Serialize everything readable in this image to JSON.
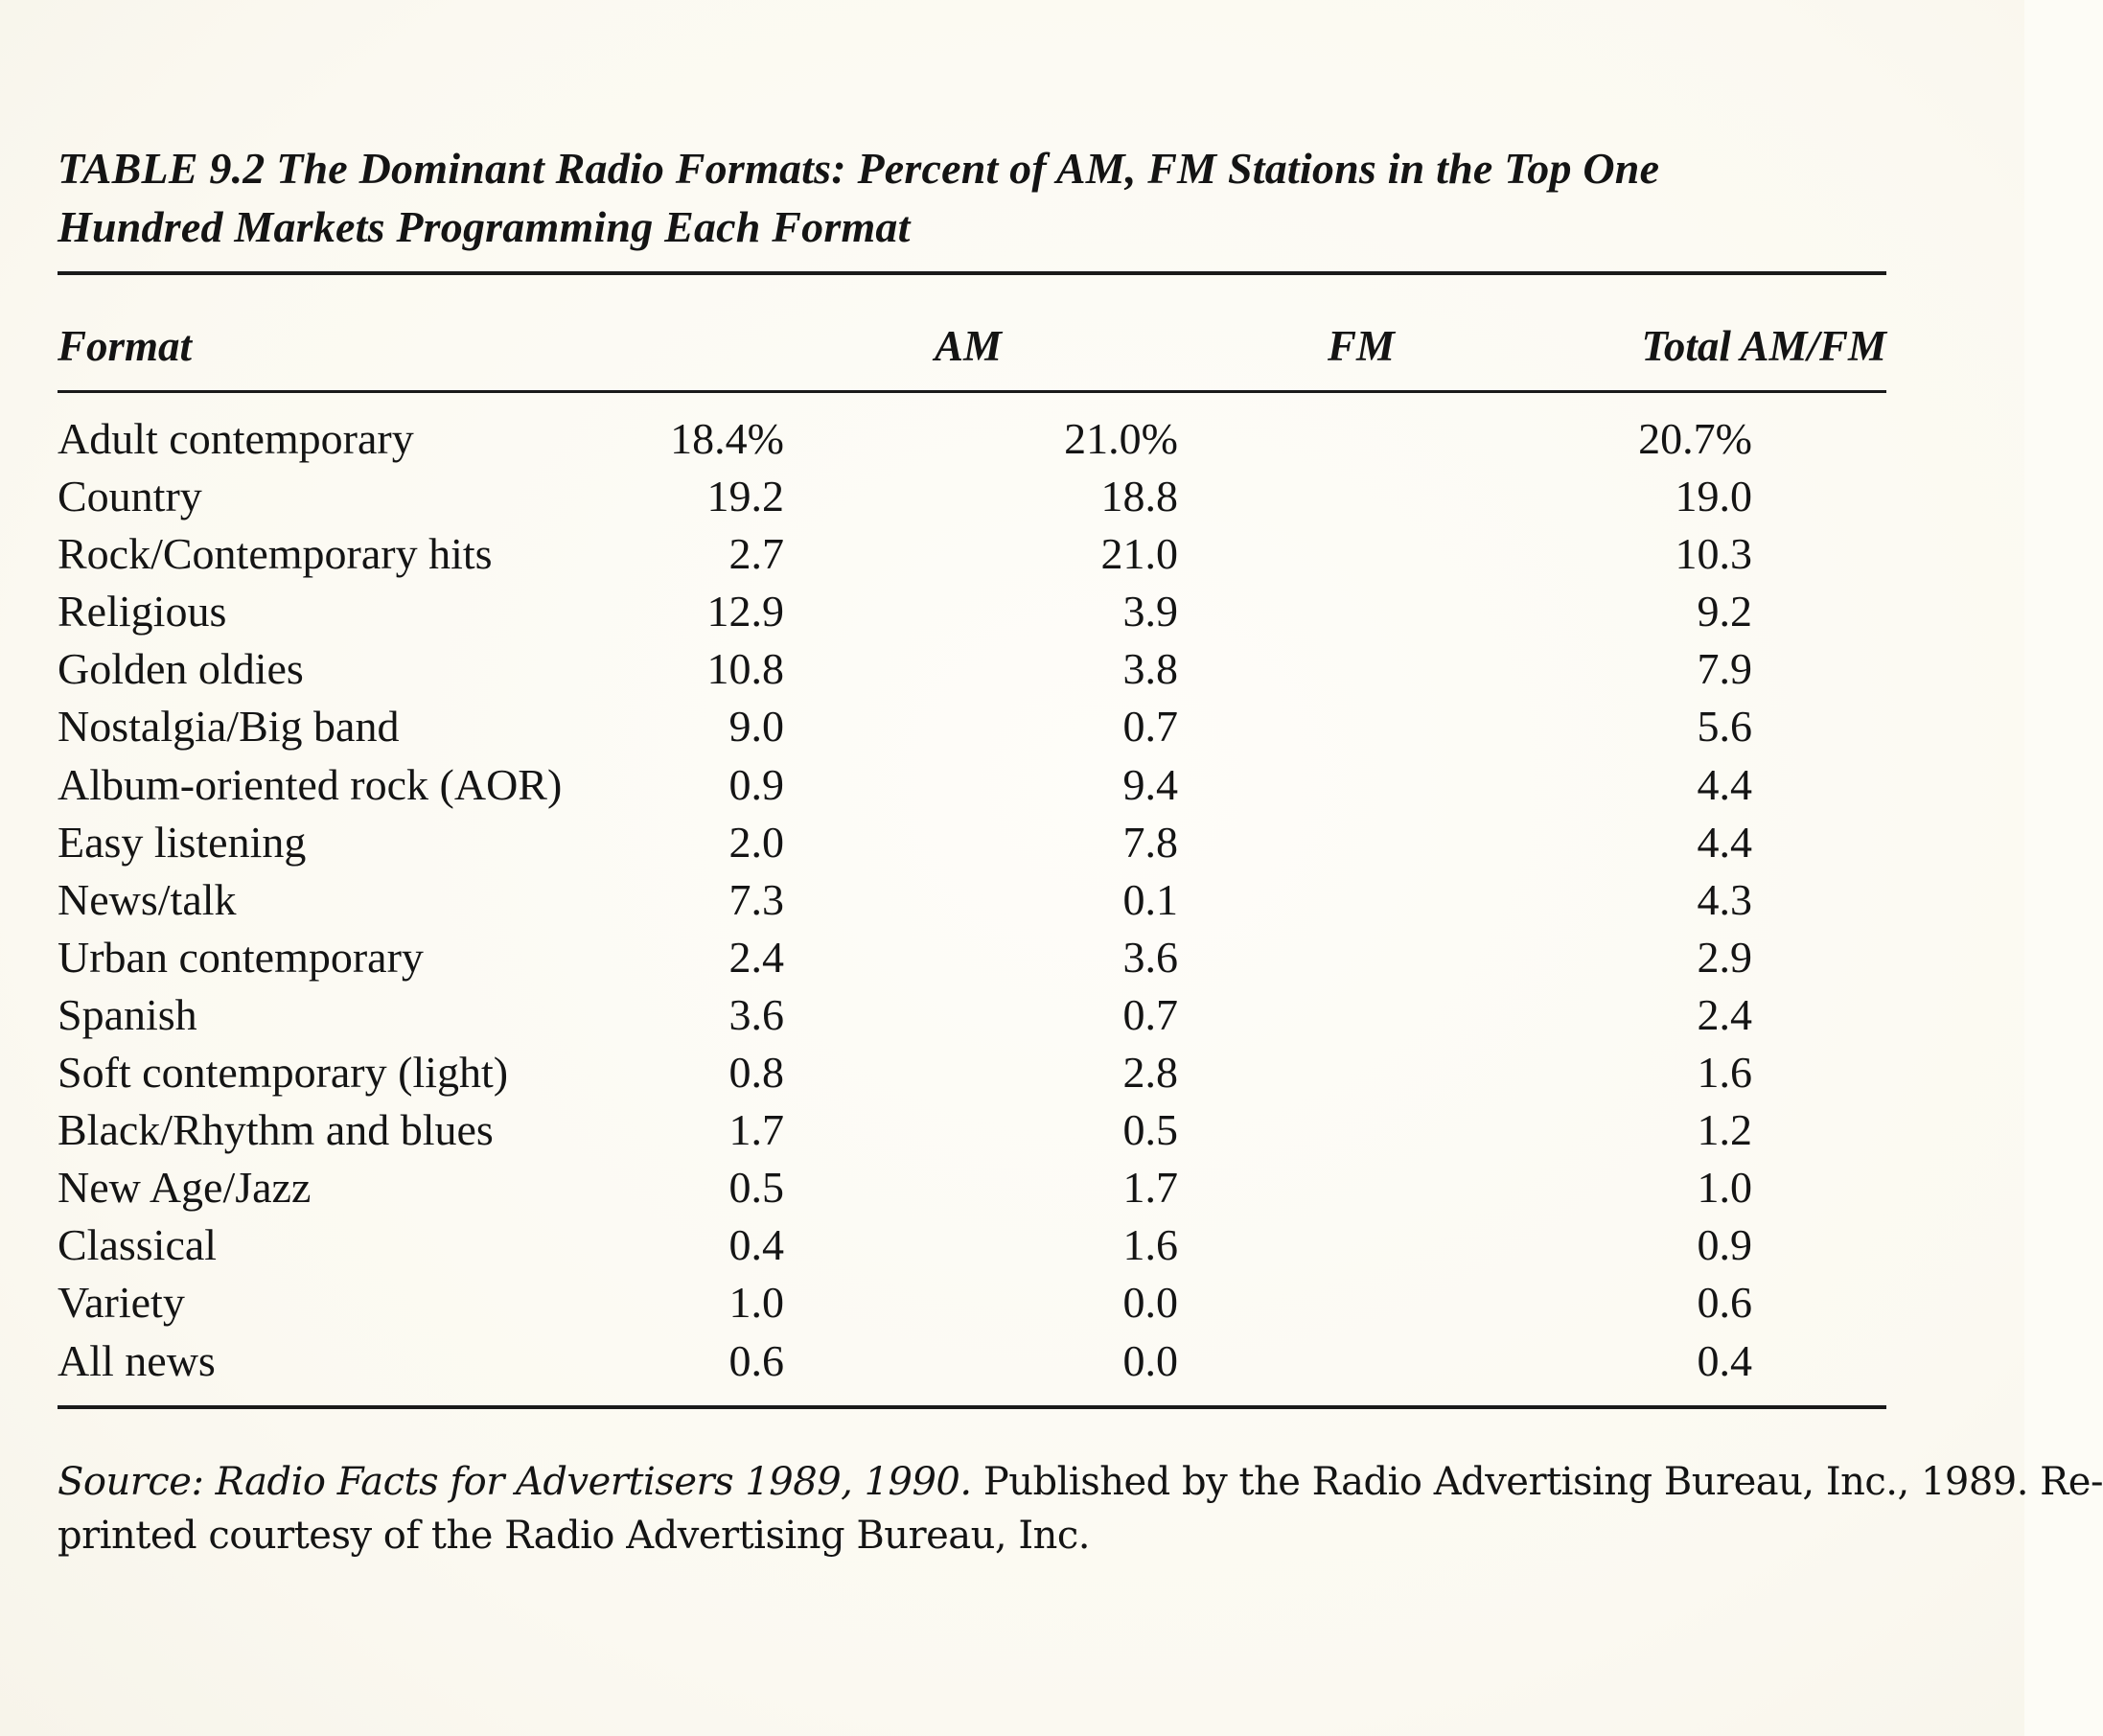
{
  "table": {
    "caption_line1": "TABLE 9.2 The Dominant Radio Formats: Percent of AM, FM Stations in the Top One",
    "caption_line2": "Hundred Markets Programming Each Format",
    "headers": {
      "format": "Format",
      "am": "AM",
      "fm": "FM",
      "total": "Total AM/FM"
    },
    "rows": [
      {
        "format": "Adult contemporary",
        "am": "18.4%",
        "fm": "21.0%",
        "total": "20.7%"
      },
      {
        "format": "Country",
        "am": "19.2",
        "fm": "18.8",
        "total": "19.0"
      },
      {
        "format": "Rock/Contemporary hits",
        "am": "2.7",
        "fm": "21.0",
        "total": "10.3"
      },
      {
        "format": "Religious",
        "am": "12.9",
        "fm": "3.9",
        "total": "9.2"
      },
      {
        "format": "Golden oldies",
        "am": "10.8",
        "fm": "3.8",
        "total": "7.9"
      },
      {
        "format": "Nostalgia/Big band",
        "am": "9.0",
        "fm": "0.7",
        "total": "5.6"
      },
      {
        "format": "Album-oriented rock (AOR)",
        "am": "0.9",
        "fm": "9.4",
        "total": "4.4"
      },
      {
        "format": "Easy listening",
        "am": "2.0",
        "fm": "7.8",
        "total": "4.4"
      },
      {
        "format": "News/talk",
        "am": "7.3",
        "fm": "0.1",
        "total": "4.3"
      },
      {
        "format": "Urban contemporary",
        "am": "2.4",
        "fm": "3.6",
        "total": "2.9"
      },
      {
        "format": "Spanish",
        "am": "3.6",
        "fm": "0.7",
        "total": "2.4"
      },
      {
        "format": "Soft contemporary (light)",
        "am": "0.8",
        "fm": "2.8",
        "total": "1.6"
      },
      {
        "format": "Black/Rhythm and blues",
        "am": "1.7",
        "fm": "0.5",
        "total": "1.2"
      },
      {
        "format": "New Age/Jazz",
        "am": "0.5",
        "fm": "1.7",
        "total": "1.0"
      },
      {
        "format": "Classical",
        "am": "0.4",
        "fm": "1.6",
        "total": "0.9"
      },
      {
        "format": "Variety",
        "am": "1.0",
        "fm": "0.0",
        "total": "0.6"
      },
      {
        "format": "All news",
        "am": "0.6",
        "fm": "0.0",
        "total": "0.4"
      }
    ],
    "source": {
      "label": "Source:",
      "title": "Radio Facts for Advertisers 1989, 1990.",
      "line1_rest": "Published by the Radio Advertising Bureau, Inc., 1989. Re-",
      "line2": "printed courtesy of the Radio Advertising Bureau, Inc."
    }
  }
}
